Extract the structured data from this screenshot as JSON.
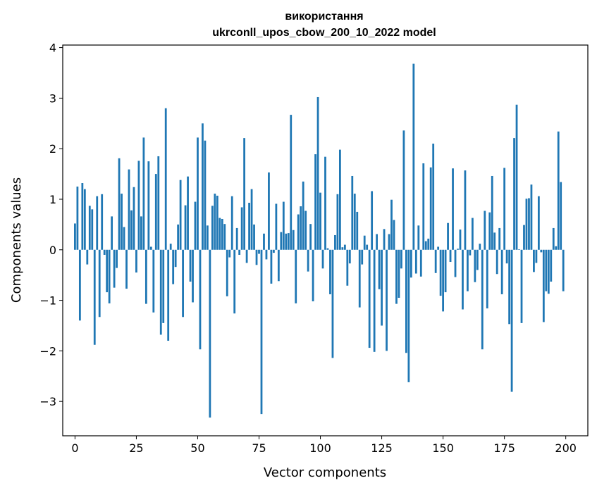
{
  "chart_data": {
    "type": "bar",
    "title_line1": "використання",
    "title_line2": "ukrconll_upos_cbow_200_10_2022 model",
    "xlabel": "Vector components",
    "ylabel": "Components values",
    "bar_color": "#1f77b4",
    "xlim": [
      -5,
      209
    ],
    "ylim": [
      -3.68,
      4.05
    ],
    "xticks": [
      0,
      25,
      50,
      75,
      100,
      125,
      150,
      175,
      200
    ],
    "yticks": [
      -3,
      -2,
      -1,
      0,
      1,
      2,
      3,
      4
    ],
    "xtick_labels": [
      "0",
      "25",
      "50",
      "75",
      "100",
      "125",
      "150",
      "175",
      "200"
    ],
    "ytick_labels": [
      "−3",
      "−2",
      "−1",
      "0",
      "1",
      "2",
      "3",
      "4"
    ],
    "values": [
      0.52,
      1.25,
      -1.4,
      1.32,
      1.2,
      -0.29,
      0.87,
      0.8,
      -1.88,
      1.06,
      -1.33,
      1.1,
      -0.1,
      -0.84,
      -1.06,
      0.66,
      -0.75,
      -0.36,
      1.81,
      1.11,
      0.45,
      -0.77,
      1.59,
      0.78,
      1.24,
      -0.45,
      1.76,
      0.66,
      2.22,
      -1.07,
      1.75,
      0.06,
      -1.24,
      1.5,
      1.85,
      -1.68,
      -1.45,
      2.8,
      -1.8,
      0.12,
      -0.68,
      -0.34,
      0.5,
      1.38,
      -1.33,
      0.88,
      1.45,
      -0.63,
      -1.04,
      0.95,
      2.22,
      -1.97,
      2.5,
      2.16,
      0.48,
      -3.32,
      0.87,
      1.11,
      1.07,
      0.63,
      0.61,
      0.51,
      -0.92,
      -0.15,
      1.06,
      -1.26,
      0.43,
      -0.1,
      0.84,
      2.21,
      -0.26,
      0.93,
      1.2,
      0.5,
      -0.3,
      -0.08,
      -3.25,
      0.32,
      -0.19,
      1.53,
      -0.67,
      -0.06,
      0.91,
      -0.62,
      0.35,
      0.95,
      0.32,
      0.33,
      2.67,
      0.39,
      -1.06,
      0.7,
      0.86,
      1.35,
      0.77,
      -0.43,
      0.51,
      -1.02,
      1.89,
      3.02,
      1.13,
      -0.37,
      1.84,
      0.03,
      -0.88,
      -2.14,
      0.29,
      1.1,
      1.98,
      0.05,
      0.1,
      -0.71,
      -0.27,
      1.46,
      1.11,
      0.75,
      -1.14,
      -0.29,
      0.28,
      0.1,
      -1.94,
      1.16,
      -2.02,
      0.31,
      -0.78,
      -1.5,
      0.41,
      -2.0,
      0.31,
      0.99,
      0.59,
      -1.07,
      -0.95,
      -0.37,
      2.36,
      -2.04,
      -2.62,
      -0.55,
      3.68,
      -0.47,
      0.48,
      -0.53,
      1.71,
      0.17,
      0.22,
      1.63,
      2.1,
      -0.46,
      0.06,
      -0.91,
      -1.22,
      -0.84,
      0.53,
      -0.24,
      1.61,
      -0.54,
      0.02,
      0.4,
      -1.18,
      1.57,
      -0.82,
      -0.11,
      0.63,
      -0.64,
      -0.4,
      0.12,
      -1.97,
      0.77,
      -1.16,
      0.74,
      1.46,
      0.34,
      -0.48,
      0.43,
      -0.88,
      1.62,
      -0.27,
      -1.47,
      -2.81,
      2.21,
      2.87,
      0.01,
      -1.45,
      0.49,
      1.01,
      1.02,
      1.29,
      -0.44,
      -0.26,
      1.06,
      -0.05,
      -1.43,
      -0.82,
      -0.87,
      -0.63,
      0.43,
      0.07,
      2.34,
      1.34,
      -0.82
    ]
  }
}
